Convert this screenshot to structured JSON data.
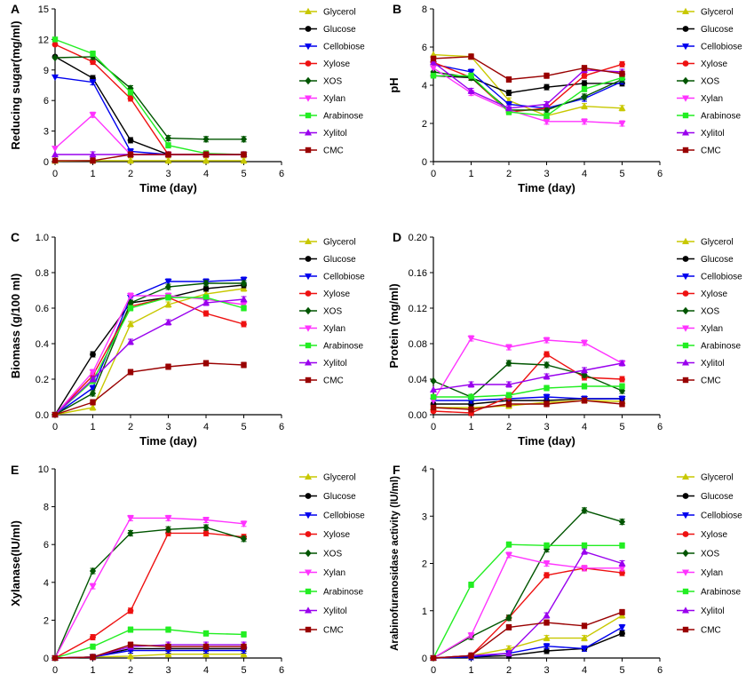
{
  "colors": {
    "Glycerol": "#c8c800",
    "Glucose": "#000000",
    "Cellobiose": "#0000ee",
    "Xylose": "#ee1111",
    "XOS": "#005500",
    "Xylan": "#ff33ff",
    "Arabinose": "#22ee22",
    "Xylitol": "#9900ee",
    "CMC": "#990000"
  },
  "markers": {
    "Glycerol": "triangle-up",
    "Glucose": "circle",
    "Cellobiose": "triangle-down",
    "Xylose": "circle",
    "XOS": "diamond",
    "Xylan": "triangle-down",
    "Arabinose": "square",
    "Xylitol": "triangle-up",
    "CMC": "square"
  },
  "chart_data": [
    {
      "panel": "A",
      "type": "line",
      "xlabel": "Time (day)",
      "ylabel": "Reducing sugar(mg/ml)",
      "xlim": [
        0,
        6
      ],
      "xticks": [
        "0",
        "1",
        "2",
        "3",
        "4",
        "5",
        "6"
      ],
      "ylim": [
        0,
        15
      ],
      "yticks": [
        "0",
        "3",
        "6",
        "9",
        "12",
        "15"
      ],
      "x": [
        0,
        1,
        2,
        3,
        4,
        5
      ],
      "series": [
        {
          "name": "Glycerol",
          "values": [
            0.05,
            0.1,
            0.1,
            0.1,
            0.1,
            0.1
          ]
        },
        {
          "name": "Glucose",
          "values": [
            10.3,
            8.2,
            2.1,
            0.7,
            0.7,
            0.7
          ]
        },
        {
          "name": "Cellobiose",
          "values": [
            8.3,
            7.8,
            1.0,
            0.7,
            0.7,
            0.7
          ]
        },
        {
          "name": "Xylose",
          "values": [
            11.5,
            9.8,
            6.2,
            0.7,
            0.7,
            0.7
          ]
        },
        {
          "name": "XOS",
          "values": [
            10.2,
            10.3,
            7.2,
            2.3,
            2.2,
            2.2
          ]
        },
        {
          "name": "Xylan",
          "values": [
            1.3,
            4.6,
            0.7,
            0.7,
            0.7,
            0.7
          ]
        },
        {
          "name": "Arabinose",
          "values": [
            12.0,
            10.6,
            6.8,
            1.6,
            0.8,
            0.7
          ]
        },
        {
          "name": "Xylitol",
          "values": [
            0.7,
            0.7,
            0.7,
            0.7,
            0.7,
            0.7
          ]
        },
        {
          "name": "CMC",
          "values": [
            0.1,
            0.1,
            0.7,
            0.7,
            0.7,
            0.7
          ]
        }
      ]
    },
    {
      "panel": "B",
      "type": "line",
      "xlabel": "Time (day)",
      "ylabel": "pH",
      "xlim": [
        0,
        6
      ],
      "xticks": [
        "0",
        "1",
        "2",
        "3",
        "4",
        "5",
        "6"
      ],
      "ylim": [
        0,
        8
      ],
      "yticks": [
        "0",
        "2",
        "4",
        "6",
        "8"
      ],
      "x": [
        0,
        1,
        2,
        3,
        4,
        5
      ],
      "series": [
        {
          "name": "Glycerol",
          "values": [
            5.6,
            5.5,
            3.2,
            2.4,
            2.9,
            2.8
          ]
        },
        {
          "name": "Glucose",
          "values": [
            4.5,
            4.4,
            3.6,
            3.9,
            4.1,
            4.1
          ]
        },
        {
          "name": "Cellobiose",
          "values": [
            5.1,
            4.7,
            3.0,
            2.8,
            3.3,
            4.2
          ]
        },
        {
          "name": "Xylose",
          "values": [
            5.2,
            4.4,
            2.6,
            2.8,
            4.5,
            5.1
          ]
        },
        {
          "name": "XOS",
          "values": [
            4.7,
            4.4,
            2.7,
            2.7,
            3.4,
            4.3
          ]
        },
        {
          "name": "Xylan",
          "values": [
            4.9,
            3.6,
            2.7,
            2.1,
            2.1,
            2.0
          ]
        },
        {
          "name": "Arabinose",
          "values": [
            4.5,
            4.5,
            2.6,
            2.4,
            3.8,
            4.4
          ]
        },
        {
          "name": "Xylitol",
          "values": [
            5.2,
            3.7,
            2.8,
            3.0,
            4.8,
            4.7
          ]
        },
        {
          "name": "CMC",
          "values": [
            5.4,
            5.5,
            4.3,
            4.5,
            4.9,
            4.6
          ]
        }
      ]
    },
    {
      "panel": "C",
      "type": "line",
      "xlabel": "Time (day)",
      "ylabel": "Biomass (g/100 ml)",
      "xlim": [
        0,
        6
      ],
      "xticks": [
        "0",
        "1",
        "2",
        "3",
        "4",
        "5",
        "6"
      ],
      "ylim": [
        0,
        1.0
      ],
      "yticks": [
        "0.0",
        "0.2",
        "0.4",
        "0.6",
        "0.8",
        "1.0"
      ],
      "x": [
        0,
        1,
        2,
        3,
        4,
        5
      ],
      "series": [
        {
          "name": "Glycerol",
          "values": [
            0.0,
            0.04,
            0.51,
            0.62,
            0.68,
            0.71
          ]
        },
        {
          "name": "Glucose",
          "values": [
            0.0,
            0.34,
            0.63,
            0.66,
            0.71,
            0.73
          ]
        },
        {
          "name": "Cellobiose",
          "values": [
            0.0,
            0.15,
            0.66,
            0.75,
            0.75,
            0.76
          ]
        },
        {
          "name": "Xylose",
          "values": [
            0.0,
            0.22,
            0.61,
            0.66,
            0.57,
            0.51
          ]
        },
        {
          "name": "XOS",
          "values": [
            0.0,
            0.12,
            0.63,
            0.72,
            0.74,
            0.74
          ]
        },
        {
          "name": "Xylan",
          "values": [
            0.0,
            0.24,
            0.67,
            0.67,
            0.65,
            0.62
          ]
        },
        {
          "name": "Arabinose",
          "values": [
            0.0,
            0.19,
            0.6,
            0.66,
            0.66,
            0.6
          ]
        },
        {
          "name": "Xylitol",
          "values": [
            0.0,
            0.2,
            0.41,
            0.52,
            0.63,
            0.65
          ]
        },
        {
          "name": "CMC",
          "values": [
            0.0,
            0.07,
            0.24,
            0.27,
            0.29,
            0.28
          ]
        }
      ]
    },
    {
      "panel": "D",
      "type": "line",
      "xlabel": "Time (day)",
      "ylabel": "Protein (mg/ml)",
      "xlim": [
        0,
        6
      ],
      "xticks": [
        "0",
        "1",
        "2",
        "3",
        "4",
        "5",
        "6"
      ],
      "ylim": [
        0,
        0.2
      ],
      "yticks": [
        "0.00",
        "0.04",
        "0.08",
        "0.12",
        "0.16",
        "0.20"
      ],
      "x": [
        0,
        1,
        2,
        3,
        4,
        5
      ],
      "series": [
        {
          "name": "Glycerol",
          "values": [
            0.008,
            0.008,
            0.01,
            0.014,
            0.016,
            0.015
          ]
        },
        {
          "name": "Glucose",
          "values": [
            0.012,
            0.012,
            0.016,
            0.016,
            0.018,
            0.018
          ]
        },
        {
          "name": "Cellobiose",
          "values": [
            0.016,
            0.016,
            0.018,
            0.02,
            0.018,
            0.018
          ]
        },
        {
          "name": "Xylose",
          "values": [
            0.004,
            0.002,
            0.02,
            0.068,
            0.042,
            0.04
          ]
        },
        {
          "name": "XOS",
          "values": [
            0.038,
            0.02,
            0.058,
            0.056,
            0.045,
            0.027
          ]
        },
        {
          "name": "Xylan",
          "values": [
            0.016,
            0.086,
            0.076,
            0.084,
            0.081,
            0.058
          ]
        },
        {
          "name": "Arabinose",
          "values": [
            0.02,
            0.02,
            0.022,
            0.03,
            0.032,
            0.032
          ]
        },
        {
          "name": "Xylitol",
          "values": [
            0.028,
            0.034,
            0.034,
            0.043,
            0.05,
            0.058
          ]
        },
        {
          "name": "CMC",
          "values": [
            0.008,
            0.006,
            0.012,
            0.012,
            0.016,
            0.012
          ]
        }
      ]
    },
    {
      "panel": "E",
      "type": "line",
      "xlabel": "Time (day)",
      "ylabel": "Xylanase(IU/ml)",
      "xlim": [
        0,
        6
      ],
      "xticks": [
        "0",
        "1",
        "2",
        "3",
        "4",
        "5",
        "6"
      ],
      "ylim": [
        0,
        10
      ],
      "yticks": [
        "0",
        "2",
        "4",
        "6",
        "8",
        "10"
      ],
      "x": [
        0,
        1,
        2,
        3,
        4,
        5
      ],
      "series": [
        {
          "name": "Glycerol",
          "values": [
            0.0,
            0.05,
            0.1,
            0.2,
            0.2,
            0.2
          ]
        },
        {
          "name": "Glucose",
          "values": [
            0.0,
            0.05,
            0.5,
            0.5,
            0.5,
            0.5
          ]
        },
        {
          "name": "Cellobiose",
          "values": [
            0.0,
            0.05,
            0.4,
            0.4,
            0.4,
            0.4
          ]
        },
        {
          "name": "Xylose",
          "values": [
            0.0,
            1.1,
            2.5,
            6.6,
            6.6,
            6.4
          ]
        },
        {
          "name": "XOS",
          "values": [
            0.0,
            4.6,
            6.6,
            6.8,
            6.9,
            6.3
          ]
        },
        {
          "name": "Xylan",
          "values": [
            0.0,
            3.8,
            7.4,
            7.4,
            7.3,
            7.1
          ]
        },
        {
          "name": "Arabinose",
          "values": [
            0.0,
            0.6,
            1.5,
            1.5,
            1.3,
            1.25
          ]
        },
        {
          "name": "Xylitol",
          "values": [
            0.0,
            0.05,
            0.6,
            0.7,
            0.7,
            0.7
          ]
        },
        {
          "name": "CMC",
          "values": [
            0.0,
            0.05,
            0.7,
            0.6,
            0.6,
            0.6
          ]
        }
      ]
    },
    {
      "panel": "F",
      "type": "line",
      "xlabel": "Time (day)",
      "ylabel": "Arabinofuranosidase activity (IU/ml)",
      "xlim": [
        0,
        6
      ],
      "xticks": [
        "0",
        "1",
        "2",
        "3",
        "4",
        "5",
        "6"
      ],
      "ylim": [
        0,
        4
      ],
      "yticks": [
        "0",
        "1",
        "2",
        "3",
        "4"
      ],
      "x": [
        0,
        1,
        2,
        3,
        4,
        5
      ],
      "series": [
        {
          "name": "Glycerol",
          "values": [
            0.0,
            0.05,
            0.2,
            0.42,
            0.42,
            0.9
          ]
        },
        {
          "name": "Glucose",
          "values": [
            0.0,
            0.02,
            0.05,
            0.15,
            0.2,
            0.52
          ]
        },
        {
          "name": "Cellobiose",
          "values": [
            0.0,
            0.02,
            0.1,
            0.25,
            0.2,
            0.65
          ]
        },
        {
          "name": "Xylose",
          "values": [
            0.0,
            0.05,
            0.85,
            1.75,
            1.9,
            1.8
          ]
        },
        {
          "name": "XOS",
          "values": [
            0.0,
            0.45,
            0.85,
            2.3,
            3.12,
            2.88
          ]
        },
        {
          "name": "Xylan",
          "values": [
            0.0,
            0.48,
            2.18,
            2.0,
            1.9,
            1.9
          ]
        },
        {
          "name": "Arabinose",
          "values": [
            0.0,
            1.55,
            2.4,
            2.38,
            2.38,
            2.38
          ]
        },
        {
          "name": "Xylitol",
          "values": [
            0.0,
            0.05,
            0.1,
            0.9,
            2.25,
            2.0
          ]
        },
        {
          "name": "CMC",
          "values": [
            0.0,
            0.05,
            0.65,
            0.75,
            0.68,
            0.97
          ]
        }
      ]
    }
  ]
}
